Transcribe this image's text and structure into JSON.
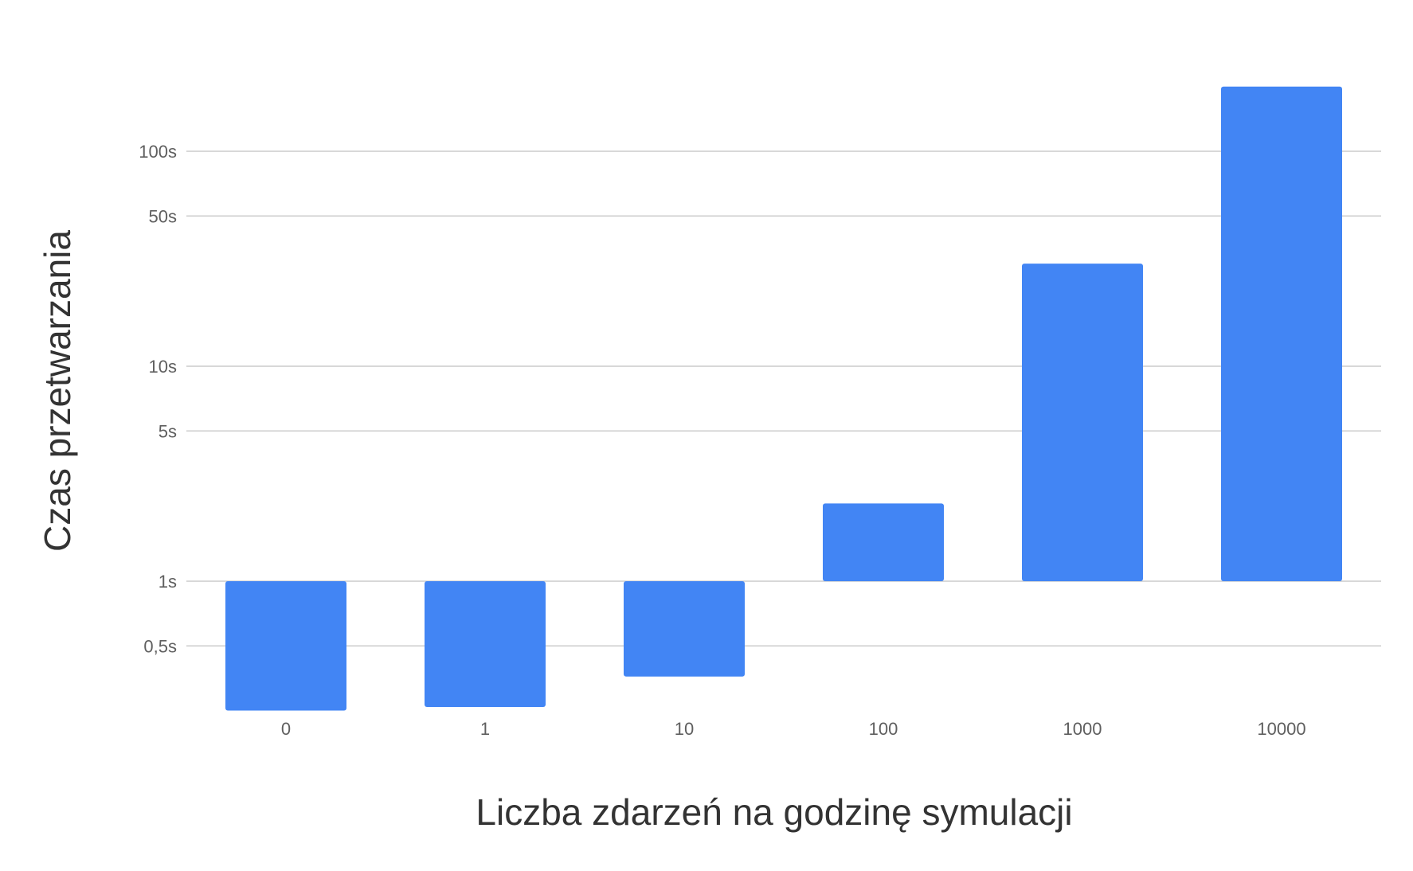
{
  "chart_data": {
    "type": "bar",
    "xlabel": "Liczba zdarzeń na godzinę symulacji",
    "ylabel": "Czas przetwarzania",
    "y_scale": "log",
    "y_baseline": 1,
    "ylim": [
      0.22,
      300
    ],
    "grid": true,
    "categories": [
      "0",
      "1",
      "10",
      "100",
      "1000",
      "10000"
    ],
    "values": [
      0.25,
      0.26,
      0.36,
      2.3,
      30,
      200
    ],
    "y_ticks": [
      {
        "value": 0.5,
        "label": "0,5s"
      },
      {
        "value": 1,
        "label": "1s"
      },
      {
        "value": 5,
        "label": "5s"
      },
      {
        "value": 10,
        "label": "10s"
      },
      {
        "value": 50,
        "label": "50s"
      },
      {
        "value": 100,
        "label": "100s"
      }
    ],
    "colors": {
      "bar": "#4285f4",
      "grid": "#cccccc",
      "tick_text": "#5f5f5f",
      "title_text": "#333333"
    }
  }
}
